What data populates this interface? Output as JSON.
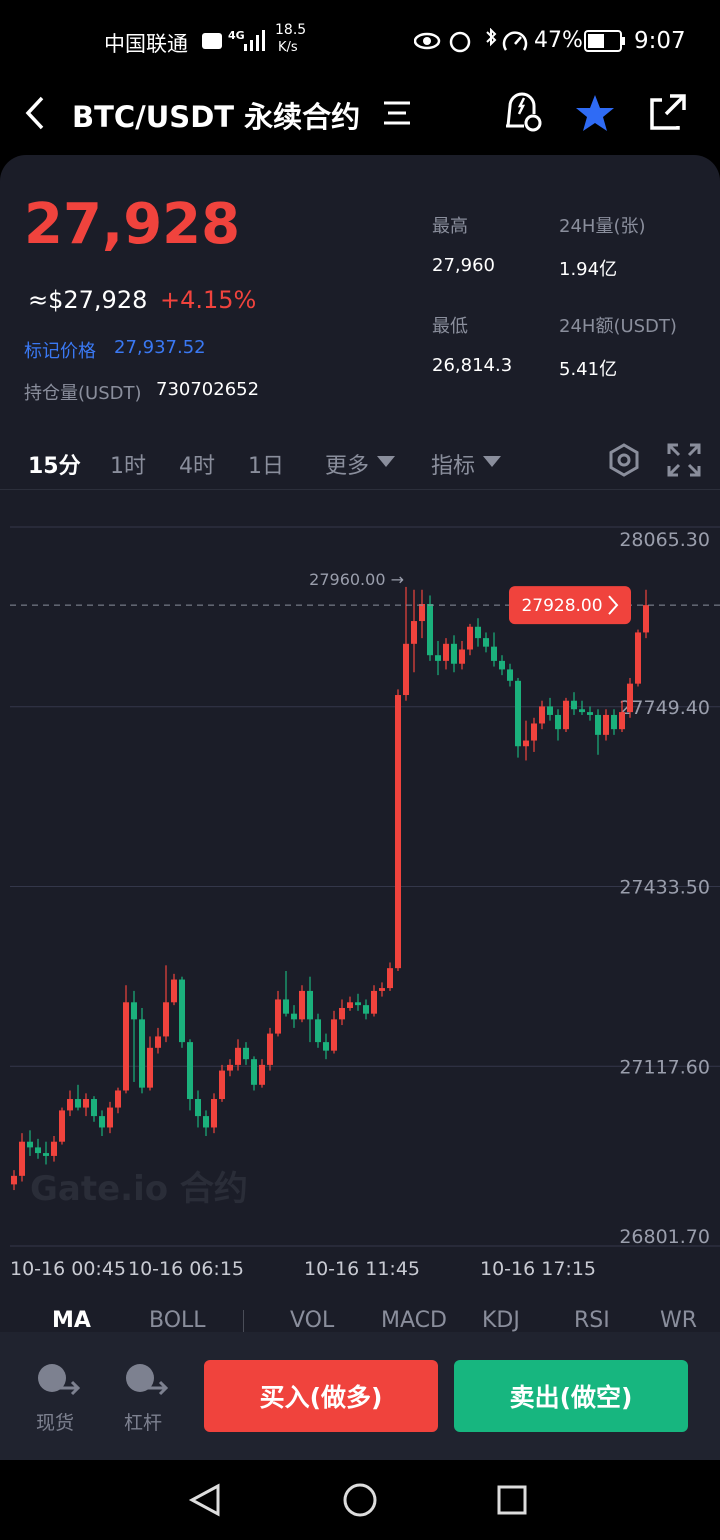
{
  "status_bar": {
    "carrier": "中国联通",
    "network": "4G",
    "speed": "18.5",
    "speed_unit": "K/s",
    "battery": "47%",
    "time": "9:07"
  },
  "header": {
    "title": "BTC/USDT 永续合约"
  },
  "ticker": {
    "price": "27,928",
    "usd_price": "≈$27,928",
    "change": "+4.15%",
    "mark_price_label": "标记价格",
    "mark_price": "27,937.52",
    "open_interest_label": "持仓量(USDT)",
    "open_interest": "730702652",
    "stats": [
      {
        "label": "最高",
        "value": "27,960"
      },
      {
        "label": "24H量(张)",
        "value": "1.94亿"
      },
      {
        "label": "最低",
        "value": "26,814.3"
      },
      {
        "label": "24H额(USDT)",
        "value": "5.41亿"
      }
    ]
  },
  "intervals": [
    "15分",
    "1时",
    "4时",
    "1日",
    "更多",
    "指标"
  ],
  "chart_data": {
    "type": "candlestick",
    "up_color": "#f0433d",
    "down_color": "#1bb17c",
    "open": [
      26910,
      26925,
      26985,
      26975,
      26965,
      26960,
      26985,
      27040,
      27060,
      27045,
      27060,
      27030,
      27010,
      27045,
      27075,
      27230,
      27200,
      27080,
      27150,
      27170,
      27230,
      27270,
      27160,
      27060,
      27030,
      27010,
      27060,
      27110,
      27120,
      27150,
      27130,
      27085,
      27120,
      27175,
      27235,
      27210,
      27200,
      27250,
      27200,
      27160,
      27145,
      27200,
      27220,
      27230,
      27225,
      27210,
      27250,
      27255,
      27290,
      27770,
      27860,
      27900,
      27930,
      27840,
      27830,
      27860,
      27825,
      27850,
      27890,
      27870,
      27855,
      27830,
      27815,
      27795,
      27680,
      27690,
      27720,
      27750,
      27735,
      27710,
      27760,
      27745,
      27740,
      27735,
      27700,
      27735,
      27710,
      27740,
      27790,
      27880
    ],
    "high": [
      26935,
      27000,
      27005,
      26990,
      26985,
      26995,
      27045,
      27075,
      27085,
      27070,
      27065,
      27040,
      27055,
      27080,
      27260,
      27250,
      27220,
      27170,
      27185,
      27295,
      27280,
      27275,
      27165,
      27075,
      27040,
      27070,
      27120,
      27130,
      27165,
      27160,
      27135,
      27130,
      27185,
      27250,
      27285,
      27225,
      27260,
      27275,
      27210,
      27175,
      27215,
      27235,
      27240,
      27245,
      27235,
      27260,
      27265,
      27300,
      27780,
      27960,
      27955,
      27955,
      27945,
      27865,
      27870,
      27875,
      27865,
      27895,
      27905,
      27880,
      27880,
      27840,
      27825,
      27800,
      27725,
      27730,
      27760,
      27765,
      27745,
      27765,
      27775,
      27760,
      27750,
      27745,
      27745,
      27745,
      27760,
      27800,
      27885,
      27955
    ],
    "low": [
      26900,
      26915,
      26960,
      26955,
      26945,
      26950,
      26980,
      27030,
      27040,
      27030,
      27020,
      26995,
      27000,
      27035,
      27070,
      27090,
      27070,
      27075,
      27140,
      27160,
      27225,
      27150,
      27040,
      27010,
      26995,
      27000,
      27055,
      27100,
      27110,
      27120,
      27075,
      27080,
      27110,
      27170,
      27205,
      27185,
      27195,
      27160,
      27150,
      27130,
      27140,
      27190,
      27215,
      27215,
      27200,
      27205,
      27240,
      27250,
      27285,
      27760,
      27810,
      27870,
      27830,
      27805,
      27815,
      27810,
      27815,
      27840,
      27855,
      27845,
      27820,
      27805,
      27785,
      27660,
      27655,
      27670,
      27710,
      27725,
      27690,
      27705,
      27735,
      27735,
      27725,
      27665,
      27690,
      27700,
      27705,
      27730,
      27785,
      27870
    ],
    "close": [
      26925,
      26985,
      26975,
      26965,
      26960,
      26985,
      27040,
      27060,
      27045,
      27060,
      27030,
      27010,
      27045,
      27075,
      27230,
      27200,
      27080,
      27150,
      27170,
      27230,
      27270,
      27160,
      27060,
      27030,
      27010,
      27060,
      27110,
      27120,
      27150,
      27130,
      27085,
      27120,
      27175,
      27235,
      27210,
      27200,
      27250,
      27200,
      27160,
      27145,
      27200,
      27220,
      27230,
      27225,
      27210,
      27250,
      27255,
      27290,
      27770,
      27860,
      27900,
      27930,
      27840,
      27830,
      27860,
      27825,
      27850,
      27890,
      27870,
      27855,
      27830,
      27815,
      27795,
      27680,
      27690,
      27720,
      27750,
      27735,
      27710,
      27760,
      27745,
      27740,
      27735,
      27700,
      27735,
      27710,
      27740,
      27790,
      27880,
      27928
    ],
    "ylim": [
      26801.7,
      28065.3
    ],
    "yticks": [
      {
        "value": 28065.3,
        "label": "28065.30"
      },
      {
        "value": 27749.4,
        "label": "27749.40"
      },
      {
        "value": 27433.5,
        "label": "27433.50"
      },
      {
        "value": 27117.6,
        "label": "27117.60"
      },
      {
        "value": 26801.7,
        "label": "26801.70"
      }
    ],
    "xticks": [
      {
        "value": -1,
        "label": "10-16 00:45"
      },
      {
        "value": 21,
        "label": "10-16 06:15"
      },
      {
        "value": 43,
        "label": "10-16 11:45"
      },
      {
        "value": 65,
        "label": "10-16 17:15"
      }
    ],
    "last_price": {
      "value": 27928,
      "label": "27928.00"
    },
    "annotation": "27960.00 →",
    "watermark": "Gate.io 合约"
  },
  "indicators": [
    "MA",
    "BOLL",
    "VOL",
    "MACD",
    "KDJ",
    "RSI",
    "WR"
  ],
  "bottom_bar": {
    "spot": "现货",
    "margin": "杠杆",
    "buy": "买入(做多)",
    "sell": "卖出(做空)"
  }
}
